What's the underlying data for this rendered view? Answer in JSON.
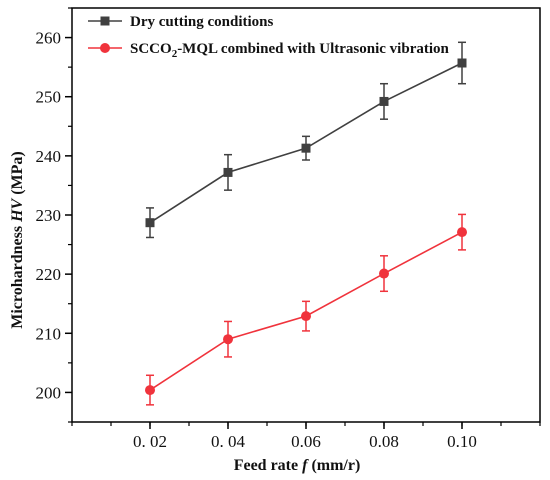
{
  "chart_data": {
    "type": "line",
    "x": [
      0.02,
      0.04,
      0.06,
      0.08,
      0.1
    ],
    "x_tick_labels": [
      "0. 02",
      "0. 04",
      "0.06",
      "0.08",
      "0.10"
    ],
    "xlim": [
      0.0,
      0.12
    ],
    "ylim": [
      195,
      265
    ],
    "y_ticks": [
      200,
      210,
      220,
      230,
      240,
      250,
      260
    ],
    "xlabel": {
      "prefix": "Feed rate ",
      "var": "f",
      "suffix": " (mm/r)"
    },
    "ylabel": {
      "prefix": "Microhardness ",
      "var": "HV",
      "suffix": " (MPa)"
    },
    "legend_position": "top-left",
    "grid": false,
    "series": [
      {
        "name": "Dry cutting conditions",
        "name_parts": [
          "Dry cutting conditions"
        ],
        "color": "#404040",
        "marker": "square",
        "values": [
          228.7,
          237.2,
          241.3,
          249.2,
          255.7
        ],
        "errors": [
          2.5,
          3.0,
          2.0,
          3.0,
          3.5
        ]
      },
      {
        "name": "SCCO2-MQL combined with Ultrasonic vibration",
        "name_parts": [
          "SCCO",
          "2",
          "-MQL combined with Ultrasonic vibration"
        ],
        "color": "#f0333c",
        "marker": "circle",
        "values": [
          200.4,
          209.0,
          212.9,
          220.1,
          227.1
        ],
        "errors": [
          2.5,
          3.0,
          2.5,
          3.0,
          3.0
        ]
      }
    ]
  }
}
